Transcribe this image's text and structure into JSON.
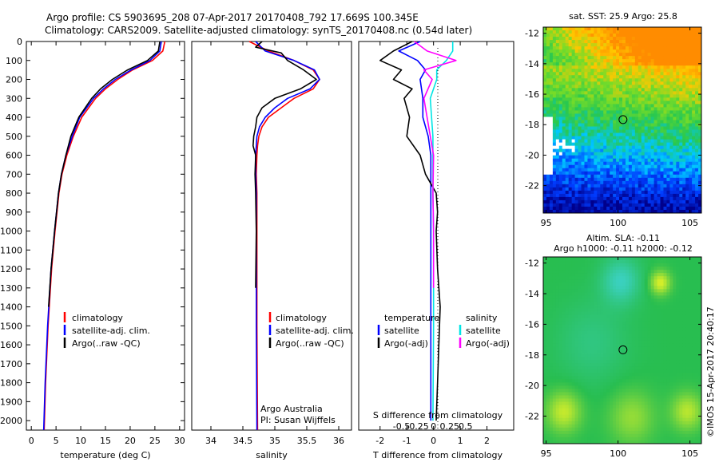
{
  "header": {
    "line1": "Argo profile: CS 5903695_208 07-Apr-2017 20170408_792 17.669S 100.345E",
    "line2": "Climatology: CARS2009. Satellite-adjusted climatology: synTS_20170408.nc (0.54d later)"
  },
  "colors": {
    "climatology": "#ff0000",
    "satellite": "#0000ff",
    "argo": "#000000",
    "satellite_salinity": "#00e5e5",
    "argo_salinity": "#ff00ff"
  },
  "chart_data": [
    {
      "type": "line",
      "name": "temperature-profile",
      "xlabel": "temperature (deg C)",
      "ylim": [
        2050,
        0
      ],
      "xlim": [
        -1,
        31
      ],
      "xticks": [
        0,
        5,
        10,
        15,
        20,
        25,
        30
      ],
      "yticks": [
        0,
        100,
        200,
        300,
        400,
        500,
        600,
        700,
        800,
        900,
        1000,
        1100,
        1200,
        1300,
        1400,
        1500,
        1600,
        1700,
        1800,
        1900,
        2000
      ],
      "legend": [
        "climatology",
        "satellite-adj. clim.",
        "Argo(..raw -QC)"
      ],
      "series": [
        {
          "name": "climatology",
          "color": "#ff0000",
          "depth": [
            0,
            50,
            100,
            150,
            200,
            250,
            300,
            400,
            500,
            600,
            700,
            800,
            1000,
            1200,
            1500,
            1800,
            2050
          ],
          "values": [
            27,
            26.6,
            24.5,
            20.5,
            17.5,
            15.0,
            13.0,
            10.2,
            8.5,
            7.2,
            6.2,
            5.6,
            4.8,
            4.1,
            3.4,
            2.9,
            2.6
          ]
        },
        {
          "name": "satellite-adj. clim.",
          "color": "#0000ff",
          "depth": [
            0,
            50,
            100,
            150,
            200,
            250,
            300,
            400,
            500,
            600,
            700,
            800,
            1000,
            1200,
            1500,
            1800,
            2050
          ],
          "values": [
            26.3,
            26.0,
            24.0,
            20.2,
            17.0,
            14.6,
            12.6,
            9.8,
            8.3,
            7.0,
            6.1,
            5.5,
            4.7,
            4.0,
            3.3,
            2.8,
            2.5
          ]
        },
        {
          "name": "Argo(..raw -QC)",
          "color": "#000000",
          "depth": [
            0,
            50,
            100,
            150,
            200,
            250,
            300,
            400,
            500,
            600,
            700,
            800,
            1000,
            1200,
            1400
          ],
          "values": [
            26,
            25.7,
            23.5,
            19.5,
            16.4,
            14.0,
            12.2,
            9.6,
            8.0,
            7.0,
            6.1,
            5.5,
            4.7,
            4.0,
            3.5
          ]
        }
      ]
    },
    {
      "type": "line",
      "name": "salinity-profile",
      "xlabel": "salinity",
      "ylim": [
        2050,
        0
      ],
      "xlim": [
        33.7,
        36.2
      ],
      "xticks": [
        34,
        34.5,
        35,
        35.5,
        36
      ],
      "legend": [
        "climatology",
        "satellite-adj. clim.",
        "Argo(..raw -QC)"
      ],
      "annotations": [
        "Argo Australia",
        "PI: Susan Wijffels"
      ],
      "series": [
        {
          "name": "climatology",
          "color": "#ff0000",
          "depth": [
            0,
            50,
            100,
            150,
            200,
            250,
            300,
            350,
            400,
            450,
            500,
            550,
            600,
            700,
            800,
            1000,
            1500,
            2050
          ],
          "values": [
            34.6,
            34.9,
            35.3,
            35.6,
            35.7,
            35.6,
            35.3,
            35.1,
            34.9,
            34.8,
            34.75,
            34.73,
            34.72,
            34.71,
            34.72,
            34.72,
            34.72,
            34.73
          ]
        },
        {
          "name": "satellite-adj. clim.",
          "color": "#0000ff",
          "depth": [
            0,
            50,
            100,
            150,
            200,
            250,
            300,
            350,
            400,
            450,
            500,
            550,
            600,
            700,
            800,
            1000,
            1500,
            2050
          ],
          "values": [
            34.7,
            34.85,
            35.3,
            35.62,
            35.7,
            35.55,
            35.2,
            35.0,
            34.85,
            34.76,
            34.72,
            34.71,
            34.7,
            34.7,
            34.71,
            34.71,
            34.71,
            34.72
          ]
        },
        {
          "name": "Argo(..raw -QC)",
          "color": "#000000",
          "depth": [
            0,
            30,
            60,
            100,
            150,
            200,
            250,
            300,
            350,
            400,
            450,
            500,
            550,
            600,
            700,
            800,
            1000,
            1300
          ],
          "values": [
            34.8,
            34.7,
            35.1,
            35.2,
            35.45,
            35.65,
            35.4,
            35.0,
            34.8,
            34.72,
            34.7,
            34.67,
            34.66,
            34.7,
            34.69,
            34.7,
            34.71,
            34.7
          ]
        }
      ]
    },
    {
      "type": "line",
      "name": "difference-profile",
      "xlabel": "T difference from climatology",
      "toplabel": "S difference from climatology",
      "ylim": [
        2050,
        0
      ],
      "xlim": [
        -2.8,
        3.0
      ],
      "xticks": [
        -2,
        -1,
        0,
        1,
        2
      ],
      "xticks_s": [
        -0.5,
        -0.25,
        0,
        0.25,
        0.5
      ],
      "legend_headers": [
        "temperature",
        "salinity"
      ],
      "legend": [
        "satellite",
        "Argo(-adj)",
        "satellite",
        "Argo(-adj)"
      ],
      "series": [
        {
          "name": "T satellite",
          "color": "#0000ff",
          "depth": [
            0,
            50,
            100,
            150,
            200,
            300,
            400,
            500,
            600,
            800,
            1000,
            1500,
            2000
          ],
          "values": [
            -0.5,
            -1.3,
            -0.6,
            -0.3,
            -0.5,
            -0.4,
            -0.4,
            -0.2,
            -0.1,
            -0.1,
            -0.1,
            -0.1,
            -0.1
          ]
        },
        {
          "name": "T Argo(-adj)",
          "color": "#000000",
          "depth": [
            0,
            50,
            100,
            150,
            200,
            250,
            300,
            400,
            500,
            600,
            700,
            750,
            800,
            900,
            1000,
            1200,
            1400,
            1600,
            1800,
            2000
          ],
          "values": [
            -0.8,
            -1.5,
            -2.0,
            -1.2,
            -1.5,
            -0.8,
            -1.1,
            -0.9,
            -1.0,
            -0.5,
            -0.3,
            -0.1,
            0.1,
            0.15,
            0.1,
            0.15,
            0.25,
            0.2,
            0.15,
            0.1
          ]
        },
        {
          "name": "S satellite",
          "color": "#00e5e5",
          "depth": [
            0,
            50,
            100,
            150,
            200,
            300,
            400,
            500,
            600,
            800,
            1000,
            1500,
            2000
          ],
          "values": [
            0.3,
            0.3,
            0.2,
            0.05,
            0.05,
            -0.05,
            -0.03,
            -0.01,
            -0.01,
            -0.01,
            0.0,
            0.0,
            -0.01
          ]
        },
        {
          "name": "S Argo(-adj)",
          "color": "#ff00ff",
          "depth": [
            0,
            50,
            100,
            150,
            200,
            300,
            400,
            500,
            600,
            800,
            1000,
            1300
          ],
          "values": [
            -0.3,
            -0.1,
            0.35,
            -0.15,
            -0.02,
            -0.15,
            -0.1,
            -0.05,
            0.0,
            -0.01,
            0.0,
            0.0
          ]
        }
      ]
    },
    {
      "type": "heatmap",
      "name": "sst-map",
      "title": "sat. SST: 25.9 Argo: 25.8",
      "xticks": [
        95,
        100,
        105
      ],
      "yticks": [
        -12,
        -14,
        -16,
        -18,
        -20,
        -22
      ],
      "marker": {
        "lon": 100.345,
        "lat": -17.669
      }
    },
    {
      "type": "heatmap",
      "name": "sla-map",
      "title": "Altim. SLA: -0.11",
      "subtitle": "Argo h1000: -0.11 h2000: -0.12",
      "xticks": [
        95,
        100,
        105
      ],
      "yticks": [
        -12,
        -14,
        -16,
        -18,
        -20,
        -22
      ],
      "marker": {
        "lon": 100.345,
        "lat": -17.669
      },
      "side_text": "©IMOS 15-Apr-2017 20:40:17"
    }
  ]
}
